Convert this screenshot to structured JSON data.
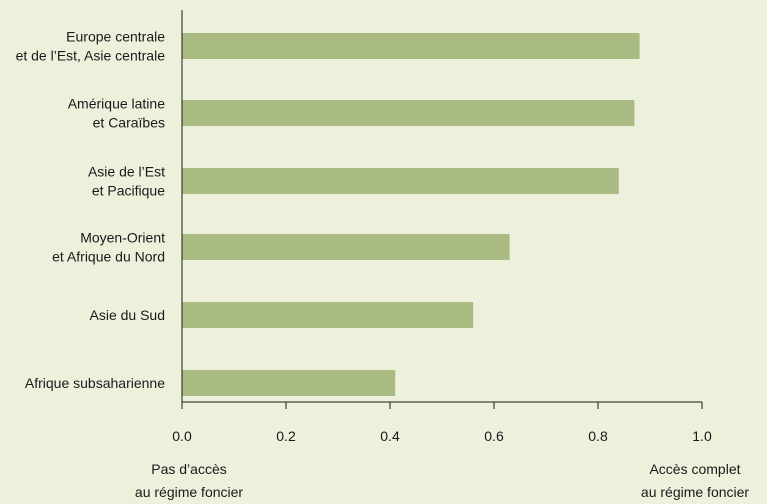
{
  "chart_data": {
    "type": "bar",
    "orientation": "horizontal",
    "categories": [
      [
        "Europe centrale",
        "et de l’Est, Asie centrale"
      ],
      [
        "Amérique latine",
        "et Caraïbes"
      ],
      [
        "Asie de l’Est",
        "et Pacifique"
      ],
      [
        "Moyen-Orient",
        "et Afrique du Nord"
      ],
      [
        "Asie du Sud"
      ],
      [
        "Afrique subsaharienne"
      ]
    ],
    "values": [
      0.88,
      0.87,
      0.84,
      0.63,
      0.56,
      0.41
    ],
    "xlim": [
      0.0,
      1.0
    ],
    "ticks": [
      "0.0",
      "0.2",
      "0.4",
      "0.6",
      "0.8",
      "1.0"
    ],
    "tick_values": [
      0.0,
      0.2,
      0.4,
      0.6,
      0.8,
      1.0
    ],
    "left_end_label": [
      "Pas d’accès",
      "au régime foncier"
    ],
    "right_end_label": [
      "Accès complet",
      "au régime foncier"
    ],
    "bar_color": "#a9bb82",
    "background_color": "#edf1dc",
    "grid": false
  }
}
